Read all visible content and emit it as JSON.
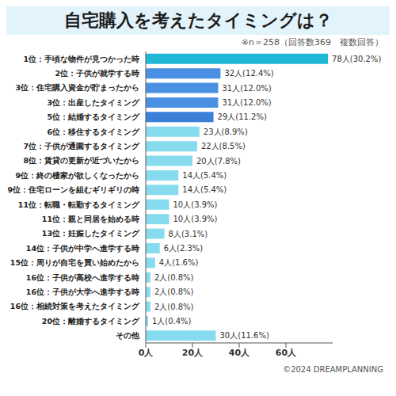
{
  "chart_data": {
    "type": "bar",
    "title": "自宅購入を考えたタイミングは？",
    "subtitle": "※n＝258（回答数369　複数回答）",
    "annotations": [
      "©2024 DREAMPLANNING"
    ],
    "orientation": "horizontal",
    "categories": [
      "1位：手頃な物件が見つかった時",
      "2位：子供が就学する時",
      "3位：住宅購入資金が貯まったから",
      "3位：出産したタイミング",
      "5位：結婚するタイミング",
      "6位：移住するタイミング",
      "7位：子供が通園するタイミング",
      "8位：賃貸の更新が近づいたから",
      "9位：終の棲家が欲しくなったから",
      "9位：住宅ローンを組むギリギリの時",
      "11位：転職・転勤するタイミング",
      "11位：親と同居を始める時",
      "13位：妊娠したタイミング",
      "14位：子供が中学へ進学する時",
      "15位：周りが自宅を買い始めたから",
      "16位：子供が高校へ進学する時",
      "16位：子供が大学へ進学する時",
      "16位：相続対策を考えたタイミング",
      "20位：離婚するタイミング",
      "その他"
    ],
    "values": [
      78,
      32,
      31,
      31,
      29,
      23,
      22,
      20,
      14,
      14,
      10,
      10,
      8,
      6,
      4,
      2,
      2,
      2,
      1,
      30
    ],
    "value_labels": [
      "78人(30.2%)",
      "32人(12.4%)",
      "31人(12.0%)",
      "31人(12.0%)",
      "29人(11.2%)",
      "23人(8.9%)",
      "22人(8.5%)",
      "20人(7.8%)",
      "14人(5.4%)",
      "14人(5.4%)",
      "10人(3.9%)",
      "10人(3.9%)",
      "8人(3.1%)",
      "6人(2.3%)",
      "4人(1.6%)",
      "2人(0.8%)",
      "2人(0.8%)",
      "2人(0.8%)",
      "1人(0.4%)",
      "30人(11.6%)"
    ],
    "colors": [
      "#1fb8d6",
      "#4a90e2",
      "#4a90e2",
      "#4a90e2",
      "#3a7fd8",
      "#86dcee",
      "#86dcee",
      "#86dcee",
      "#86dcee",
      "#86dcee",
      "#86dcee",
      "#86dcee",
      "#86dcee",
      "#86dcee",
      "#86dcee",
      "#86dcee",
      "#86dcee",
      "#86dcee",
      "#86dcee",
      "#86dcee"
    ],
    "xlim": [
      0,
      80
    ],
    "xticks": [
      {
        "value": 0,
        "label": "0人"
      },
      {
        "value": 20,
        "label": "20人"
      },
      {
        "value": 40,
        "label": "40人"
      },
      {
        "value": 60,
        "label": "60人"
      }
    ],
    "grid": false,
    "data_labels": true
  }
}
